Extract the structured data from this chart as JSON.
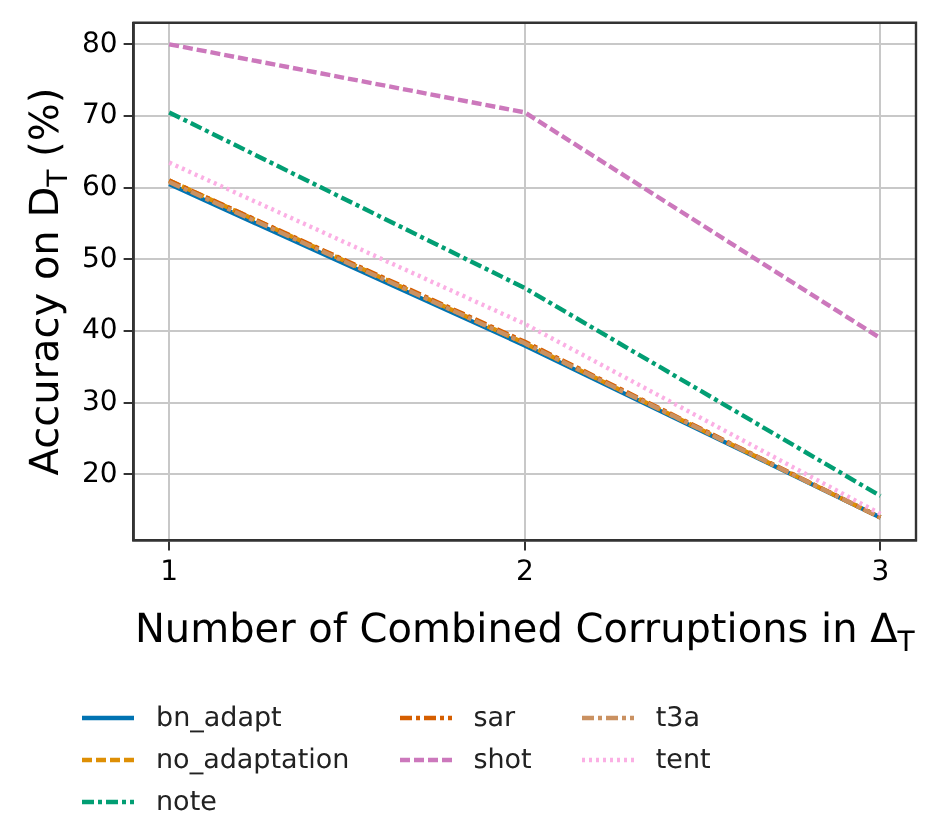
{
  "chart_data": {
    "type": "line",
    "xlabel": "Number of Combined Corruptions in Δ$_{T}$",
    "ylabel": "Accuracy on D$_{T}$ (%)",
    "x": [
      1,
      2,
      3
    ],
    "xlim": [
      0.9,
      3.1
    ],
    "xticks": [
      1,
      2,
      3
    ],
    "ylim": [
      10.8,
      83
    ],
    "yticks": [
      20,
      30,
      40,
      50,
      60,
      70,
      80
    ],
    "grid": true,
    "legend": "bottom",
    "marker": "none",
    "series": [
      {
        "name": "bn_adapt",
        "color": "#0173b2",
        "line_style": "solid",
        "values": [
          60.5,
          38,
          14
        ]
      },
      {
        "name": "no_adaptation",
        "color": "#de8f05",
        "line_style": "dashed",
        "values": [
          61,
          38.3,
          14
        ]
      },
      {
        "name": "note",
        "color": "#029e73",
        "line_style": "dashdot",
        "values": [
          70.5,
          46,
          17
        ]
      },
      {
        "name": "sar",
        "color": "#d55e00",
        "line_style": "dashdot",
        "values": [
          61,
          38.5,
          14
        ]
      },
      {
        "name": "shot",
        "color": "#cc78bc",
        "line_style": "dashed",
        "values": [
          80,
          70.5,
          39
        ]
      },
      {
        "name": "t3a",
        "color": "#ca9161",
        "line_style": "dashdot",
        "values": [
          60.8,
          38.3,
          14
        ]
      },
      {
        "name": "tent",
        "color": "#fbafe4",
        "line_style": "dotted",
        "values": [
          63.5,
          41,
          14.5
        ]
      }
    ]
  }
}
